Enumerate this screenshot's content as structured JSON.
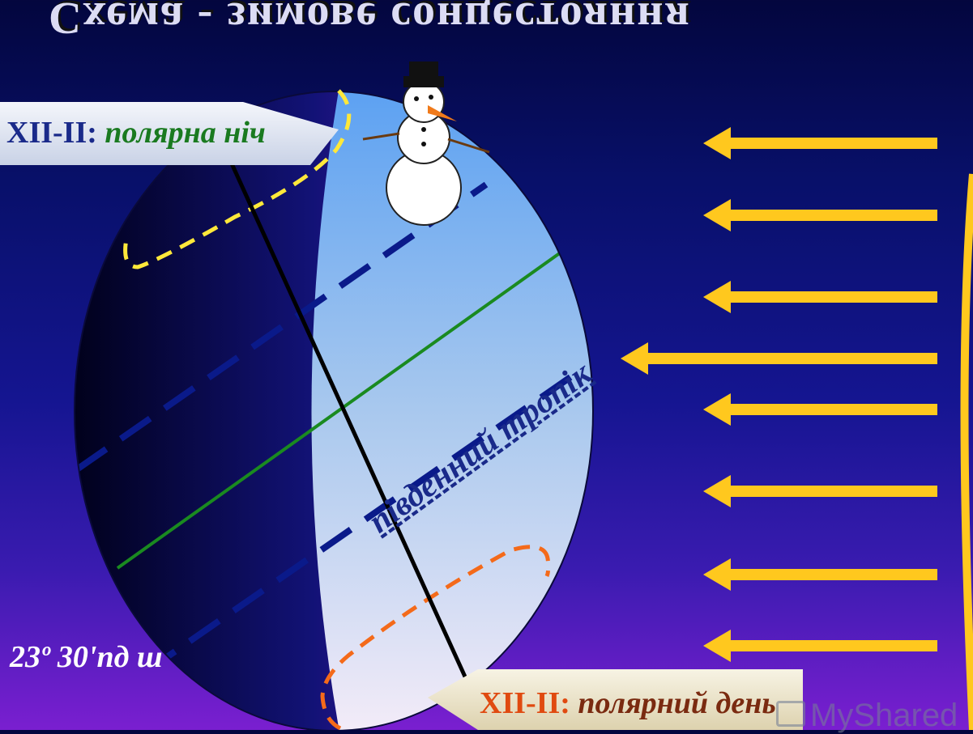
{
  "title": "Схема - зимове сонцестояння",
  "callout_top": {
    "code": "XII-II:",
    "text": "полярна ніч"
  },
  "callout_bottom": {
    "code": "XII-II:",
    "text": "полярний день"
  },
  "latitude_label": "23º 30'пд ш",
  "tropic_label": "південний тропік",
  "watermark": "MyShared",
  "sun_rays": {
    "count": 8,
    "direction": "left"
  },
  "colors": {
    "background_top": "#03063e",
    "background_bottom": "#7a1fd0",
    "day_side": "#6aa8f4",
    "night_side": "#0c0c5a",
    "ray": "#ffc81e",
    "equator": "#1a8a20",
    "tropic": "#0a1a8a",
    "polar_night_circle": "#ffe83a",
    "polar_day_circle": "#f46a1a",
    "axis": "#000000"
  },
  "icons": [
    "snowman-icon",
    "arrow-left-icon",
    "sun-rays-icon"
  ]
}
